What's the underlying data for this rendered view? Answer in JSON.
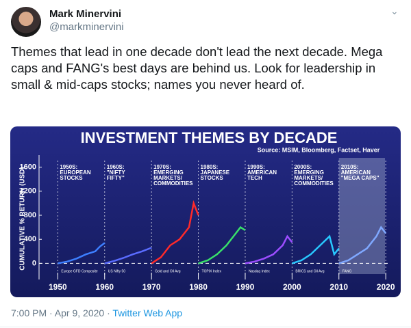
{
  "tweet": {
    "author_name": "Mark Minervini",
    "handle": "@markminervini",
    "text": "Themes that lead in one decade don't lead the next decade. Mega caps and FANG's best days are behind us. Look for leadership in small & mid-caps stocks; names you never heard of.",
    "timestamp": "7:00 PM · Apr 9, 2020 ·",
    "source": "Twitter Web App"
  },
  "chart_data": {
    "type": "line",
    "title": "INVESTMENT THEMES BY DECADE",
    "subtitle": "Source: MSIM, Bloomberg, Factset, Haver",
    "y_label": "CUMULATIVE % RETURN (USD)",
    "xlim": [
      1946,
      2021
    ],
    "xticks": [
      1950,
      1960,
      1970,
      1980,
      1990,
      2000,
      2010,
      2020
    ],
    "ylim": [
      -200,
      1800
    ],
    "yticks": [
      0,
      400,
      800,
      1200,
      1600
    ],
    "series": [
      {
        "color": "#3d7fff",
        "x": [
          1950,
          1952,
          1954,
          1956,
          1958,
          1959,
          1960
        ],
        "values": [
          0,
          30,
          80,
          150,
          200,
          280,
          340
        ]
      },
      {
        "color": "#5a6cff",
        "x": [
          1960,
          1962,
          1964,
          1966,
          1968,
          1970
        ],
        "values": [
          0,
          40,
          90,
          150,
          200,
          260
        ]
      },
      {
        "color": "#ff2a2a",
        "x": [
          1970,
          1972,
          1974,
          1976,
          1978,
          1979,
          1980
        ],
        "values": [
          0,
          100,
          300,
          400,
          600,
          1000,
          800
        ]
      },
      {
        "color": "#39e06a",
        "x": [
          1980,
          1982,
          1984,
          1986,
          1988,
          1989,
          1990
        ],
        "values": [
          0,
          50,
          150,
          300,
          500,
          600,
          550
        ]
      },
      {
        "color": "#9c4dff",
        "x": [
          1990,
          1992,
          1994,
          1996,
          1998,
          1999,
          2000
        ],
        "values": [
          0,
          30,
          80,
          150,
          300,
          450,
          350
        ]
      },
      {
        "color": "#28c8ff",
        "x": [
          2000,
          2002,
          2004,
          2006,
          2008,
          2009,
          2010
        ],
        "values": [
          0,
          50,
          150,
          300,
          450,
          150,
          250
        ]
      },
      {
        "color": "#7fa8ff",
        "x": [
          2010,
          2012,
          2014,
          2016,
          2018,
          2019,
          2020
        ],
        "values": [
          0,
          50,
          150,
          250,
          450,
          600,
          500
        ]
      }
    ],
    "annotations": [
      {
        "label": [
          "1950S:",
          "EUROPEAN",
          "STOCKS"
        ],
        "index": "Europe GFD Composite"
      },
      {
        "label": [
          "1960S:",
          "\"NIFTY",
          "FIFTY\""
        ],
        "index": "US Nifty 50"
      },
      {
        "label": [
          "1970S:",
          "EMERGING",
          "MARKETS/",
          "COMMODITIES"
        ],
        "index": "Gold and Oil Avg"
      },
      {
        "label": [
          "1980S:",
          "JAPANESE",
          "STOCKS"
        ],
        "index": "TOPIX Index"
      },
      {
        "label": [
          "1990S:",
          "AMERICAN",
          "TECH"
        ],
        "index": "Nasdaq Index"
      },
      {
        "label": [
          "2000S:",
          "EMERGING",
          "MARKETS/",
          "COMMODITIES"
        ],
        "index": "BRICS and Oil Avg"
      },
      {
        "label": [
          "2010S:",
          "AMERICAN",
          "\"MEGA CAPS\""
        ],
        "index": "FANG"
      }
    ]
  }
}
